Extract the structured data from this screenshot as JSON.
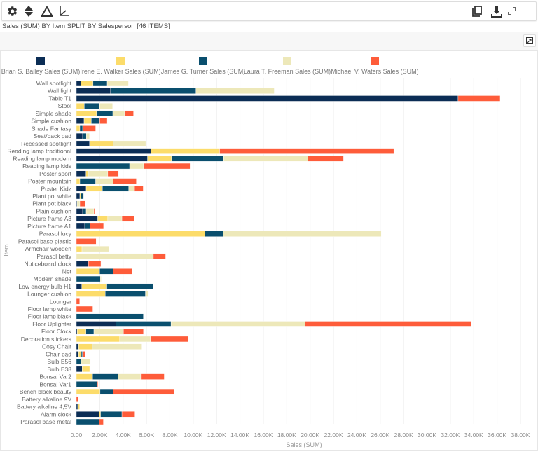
{
  "toolbar": {
    "icons": [
      "gear-icon",
      "sort-icon",
      "triangle-icon",
      "axis-icon",
      "copy-icon",
      "download-icon",
      "fullscreen-icon"
    ]
  },
  "title": "Sales (SUM) BY Item SPLIT BY Salesperson [46 ITEMS]",
  "chart_data": {
    "type": "bar",
    "orientation": "horizontal",
    "stacked": true,
    "xlabel": "Sales (SUM)",
    "ylabel": "Item",
    "xlim": [
      0,
      39000
    ],
    "x_ticks": [
      0,
      2000,
      4000,
      6000,
      8000,
      10000,
      12000,
      14000,
      16000,
      18000,
      20000,
      22000,
      24000,
      26000,
      28000,
      30000,
      32000,
      34000,
      36000,
      38000
    ],
    "x_tick_labels": [
      "0.00",
      "2.00K",
      "4.00K",
      "6.00K",
      "8.00K",
      "10.00K",
      "12.00K",
      "14.00K",
      "16.00K",
      "18.00K",
      "20.00K",
      "22.00K",
      "24.00K",
      "26.00K",
      "28.00K",
      "30.00K",
      "32.00K",
      "34.00K",
      "36.00K",
      "38.00K"
    ],
    "grid": true,
    "legend": "top",
    "categories": [
      "Wall spotlight",
      "Wall light",
      "Table T1",
      "Stool",
      "Simple shade",
      "Simple cushion",
      "Shade Fantasy",
      "Seat/back pad",
      "Recessed spotlight",
      "Reading lamp traditional",
      "Reading lamp modern",
      "Reading lamp kids",
      "Poster sport",
      "Poster mountain",
      "Poster Kidz",
      "Plant pot white",
      "Plant pot black",
      "Plain cushion",
      "Picture frame A3",
      "Picture frame A1",
      "Parasol lucy",
      "Parasol base plastic",
      "Armchair wooden",
      "Parasol betty",
      "Noticeboard clock",
      "Net",
      "Modern shade",
      "Low energy bulb H1",
      "Lounger cushion",
      "Lounger",
      "Floor lamp white",
      "Floor lamp black",
      "Floor Uplighter",
      "Floor Clock",
      "Decoration stickers",
      "Cosy Chair",
      "Chair pad",
      "Bulb E56",
      "Bulb E38",
      "Bonsai Var2",
      "Bonsai Var1",
      "Bench black beauty",
      "Battery alkaline 9V",
      "Battery alkaline 4,5V",
      "Alarm clock",
      "Parasol base metal"
    ],
    "series": [
      {
        "name": "Brian S. Bailey Sales (SUM)",
        "color": "#0b2d55",
        "values": [
          400,
          2930,
          32660,
          0,
          0,
          660,
          0,
          540,
          1130,
          6390,
          6090,
          0,
          820,
          0,
          840,
          300,
          60,
          540,
          1830,
          720,
          0,
          0,
          0,
          0,
          1030,
          0,
          0,
          460,
          0,
          0,
          0,
          0,
          3400,
          80,
          0,
          200,
          200,
          0,
          500,
          0,
          0,
          0,
          0,
          120,
          1970,
          0
        ]
      },
      {
        "name": "Irene E. Walker Sales (SUM)",
        "color": "#fcdc6a",
        "values": [
          1030,
          0,
          0,
          680,
          1730,
          620,
          300,
          0,
          2030,
          5870,
          2050,
          0,
          200,
          300,
          1390,
          100,
          0,
          0,
          860,
          0,
          11000,
          0,
          480,
          0,
          0,
          1990,
          0,
          2150,
          2470,
          0,
          0,
          0,
          0,
          740,
          3700,
          1170,
          220,
          0,
          640,
          1390,
          0,
          2030,
          0,
          160,
          100,
          0
        ]
      },
      {
        "name": "James G. Turner Sales (SUM)",
        "color": "#0a4f6e",
        "values": [
          1210,
          7300,
          0,
          1310,
          1390,
          720,
          240,
          320,
          0,
          0,
          4460,
          4560,
          0,
          1350,
          2250,
          220,
          0,
          300,
          0,
          460,
          1550,
          0,
          0,
          0,
          0,
          1170,
          2050,
          3960,
          3440,
          0,
          0,
          5730,
          4700,
          680,
          0,
          0,
          100,
          420,
          0,
          2170,
          1810,
          1130,
          0,
          0,
          1830,
          1930
        ]
      },
      {
        "name": "Laura T. Freeman Sales (SUM)",
        "color": "#ede8b9",
        "values": [
          1820,
          6700,
          0,
          1110,
          1010,
          0,
          0,
          260,
          2780,
          0,
          7220,
          1190,
          1670,
          1510,
          500,
          0,
          240,
          660,
          1210,
          0,
          13540,
          0,
          2330,
          6590,
          0,
          0,
          80,
          0,
          220,
          0,
          0,
          0,
          11480,
          2530,
          2650,
          4180,
          60,
          780,
          0,
          1950,
          0,
          0,
          0,
          0,
          0,
          0
        ]
      },
      {
        "name": "Michael V. Waters Sales (SUM)",
        "color": "#fe5c3a",
        "values": [
          0,
          0,
          3600,
          0,
          760,
          640,
          1110,
          0,
          0,
          14900,
          3040,
          3980,
          920,
          1970,
          740,
          0,
          480,
          100,
          1050,
          1150,
          0,
          1690,
          0,
          1050,
          1070,
          1610,
          0,
          0,
          0,
          280,
          1410,
          0,
          14200,
          1710,
          3240,
          0,
          160,
          0,
          0,
          2010,
          60,
          5210,
          140,
          0,
          1110,
          380
        ]
      }
    ]
  }
}
